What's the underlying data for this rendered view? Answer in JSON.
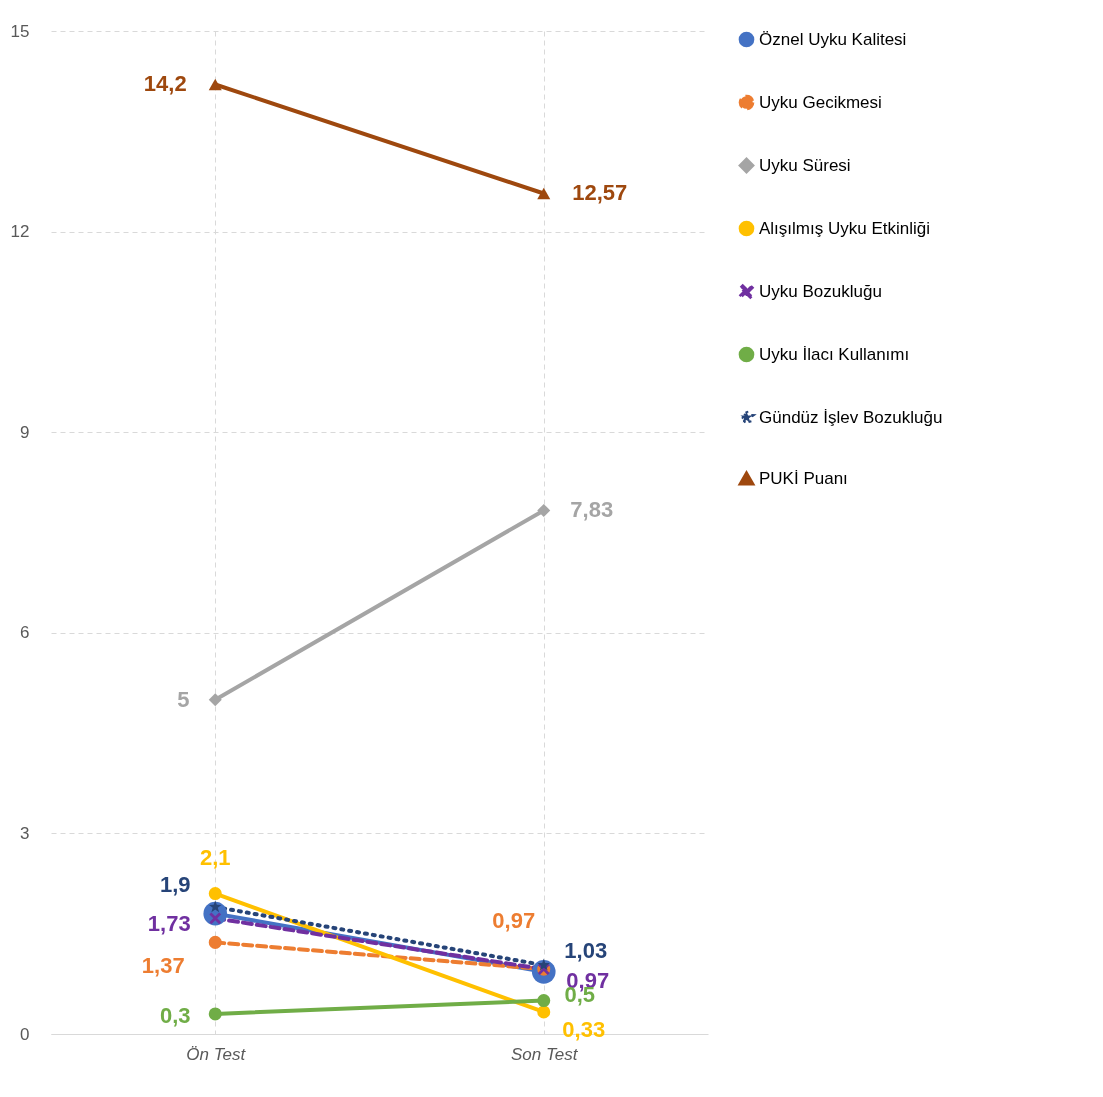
{
  "chart_data": {
    "type": "line",
    "categories": [
      "Ön Test",
      "Son Test"
    ],
    "ylim": [
      0,
      15
    ],
    "yticks": [
      0,
      3,
      6,
      9,
      12,
      15
    ],
    "grid": true,
    "legend": "right",
    "series": [
      {
        "name": "Öznel Uyku Kalitesi",
        "color": "#4472c4",
        "values": [
          1.8,
          0.93
        ],
        "marker": "circle",
        "line_style": "solid",
        "value_labels": [
          null,
          null
        ]
      },
      {
        "name": "Uyku Gecikmesi",
        "color": "#ed7d31",
        "values": [
          1.37,
          0.97
        ],
        "marker": "circle",
        "line_style": "dashed",
        "value_labels": [
          "1,37",
          "0,97"
        ]
      },
      {
        "name": "Uyku Süresi",
        "color": "#a5a5a5",
        "values": [
          5,
          7.83
        ],
        "marker": "diamond",
        "line_style": "solid",
        "value_labels": [
          "5",
          "7,83"
        ]
      },
      {
        "name": "Alışılmış Uyku Etkinliği",
        "color": "#ffc000",
        "values": [
          2.1,
          0.33
        ],
        "marker": "circle",
        "line_style": "solid",
        "value_labels": [
          "2,1",
          "0,33"
        ]
      },
      {
        "name": "Uyku Bozukluğu",
        "color": "#7030a0",
        "values": [
          1.73,
          0.97
        ],
        "marker": "cross",
        "line_style": "dashed",
        "value_labels": [
          "1,73",
          "0,97"
        ]
      },
      {
        "name": "Uyku İlacı Kullanımı",
        "color": "#70ad47",
        "values": [
          0.3,
          0.5
        ],
        "marker": "circle",
        "line_style": "solid",
        "value_labels": [
          "0,3",
          "0,5"
        ]
      },
      {
        "name": "Gündüz İşlev Bozukluğu",
        "color": "#264478",
        "values": [
          1.9,
          1.03
        ],
        "marker": "star",
        "line_style": "dotted",
        "value_labels": [
          "1,9",
          "1,03"
        ]
      },
      {
        "name": "PUKİ Puanı",
        "color": "#9e480e",
        "values": [
          14.2,
          12.57
        ],
        "marker": "triangle",
        "line_style": "solid",
        "value_labels": [
          "14,2",
          "12,57"
        ]
      }
    ]
  }
}
